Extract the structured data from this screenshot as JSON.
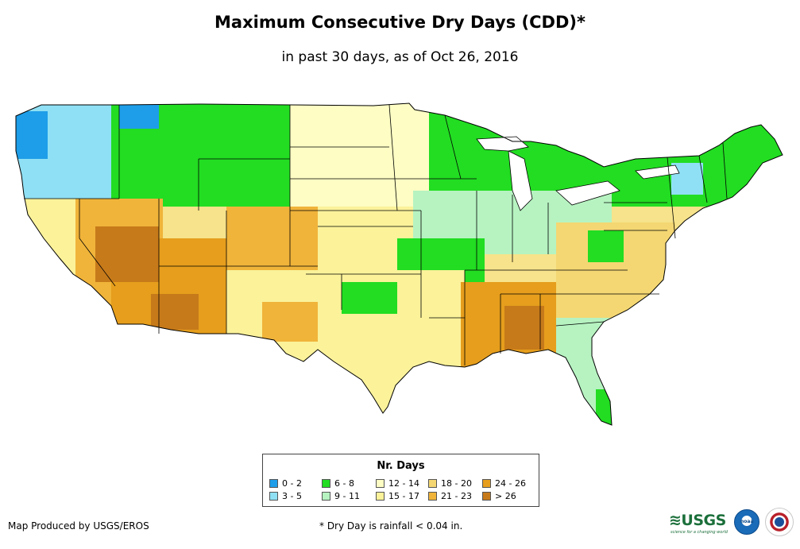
{
  "title": "Maximum Consecutive Dry Days (CDD)*",
  "subtitle": "in past 30 days, as of Oct 26, 2016",
  "legend": {
    "title": "Nr. Days",
    "items": [
      {
        "label": "0 - 2",
        "color": "#1e9ee8"
      },
      {
        "label": "3 - 5",
        "color": "#8fe0f4"
      },
      {
        "label": "6 - 8",
        "color": "#22dd22"
      },
      {
        "label": "9 - 11",
        "color": "#b6f3c1"
      },
      {
        "label": "12 - 14",
        "color": "#fdfdc4"
      },
      {
        "label": "15 - 17",
        "color": "#fbf29a"
      },
      {
        "label": "18 - 20",
        "color": "#f4d772"
      },
      {
        "label": "21 - 23",
        "color": "#f0b43a"
      },
      {
        "label": "24 - 26",
        "color": "#e69e1c"
      },
      {
        "label": "> 26",
        "color": "#c77a1a"
      }
    ]
  },
  "credit": "Map Produced by USGS/EROS",
  "footnote": "* Dry Day is rainfall < 0.04 in.",
  "logos": {
    "usgs_name": "USGS logo",
    "usgs_text": "≋USGS",
    "usgs_tagline": "science for a changing world",
    "noaa_name": "NOAA logo",
    "noaa_text": "noaa",
    "nws_name": "National Weather Service logo"
  },
  "map_regions": [
    {
      "name": "map-region-pacific-northwest",
      "category": "3 - 5"
    },
    {
      "name": "map-region-northern-rockies",
      "category": "6 - 8"
    },
    {
      "name": "map-region-northern-plains",
      "category": "12 - 14"
    },
    {
      "name": "map-region-great-lakes",
      "category": "6 - 8"
    },
    {
      "name": "map-region-northeast",
      "category": "6 - 8"
    },
    {
      "name": "map-region-california",
      "category": "15 - 17"
    },
    {
      "name": "map-region-great-basin",
      "category": "21 - 23"
    },
    {
      "name": "map-region-southwest",
      "category": "24 - 26"
    },
    {
      "name": "map-region-central-rockies",
      "category": "21 - 23"
    },
    {
      "name": "map-region-central-plains",
      "category": "15 - 17"
    },
    {
      "name": "map-region-midwest",
      "category": "9 - 11"
    },
    {
      "name": "map-region-mississippi-valley",
      "category": "6 - 8"
    },
    {
      "name": "map-region-texas",
      "category": "15 - 17"
    },
    {
      "name": "map-region-southeast",
      "category": "24 - 26"
    },
    {
      "name": "map-region-mid-atlantic",
      "category": "18 - 20"
    },
    {
      "name": "map-region-florida",
      "category": "9 - 11"
    }
  ]
}
